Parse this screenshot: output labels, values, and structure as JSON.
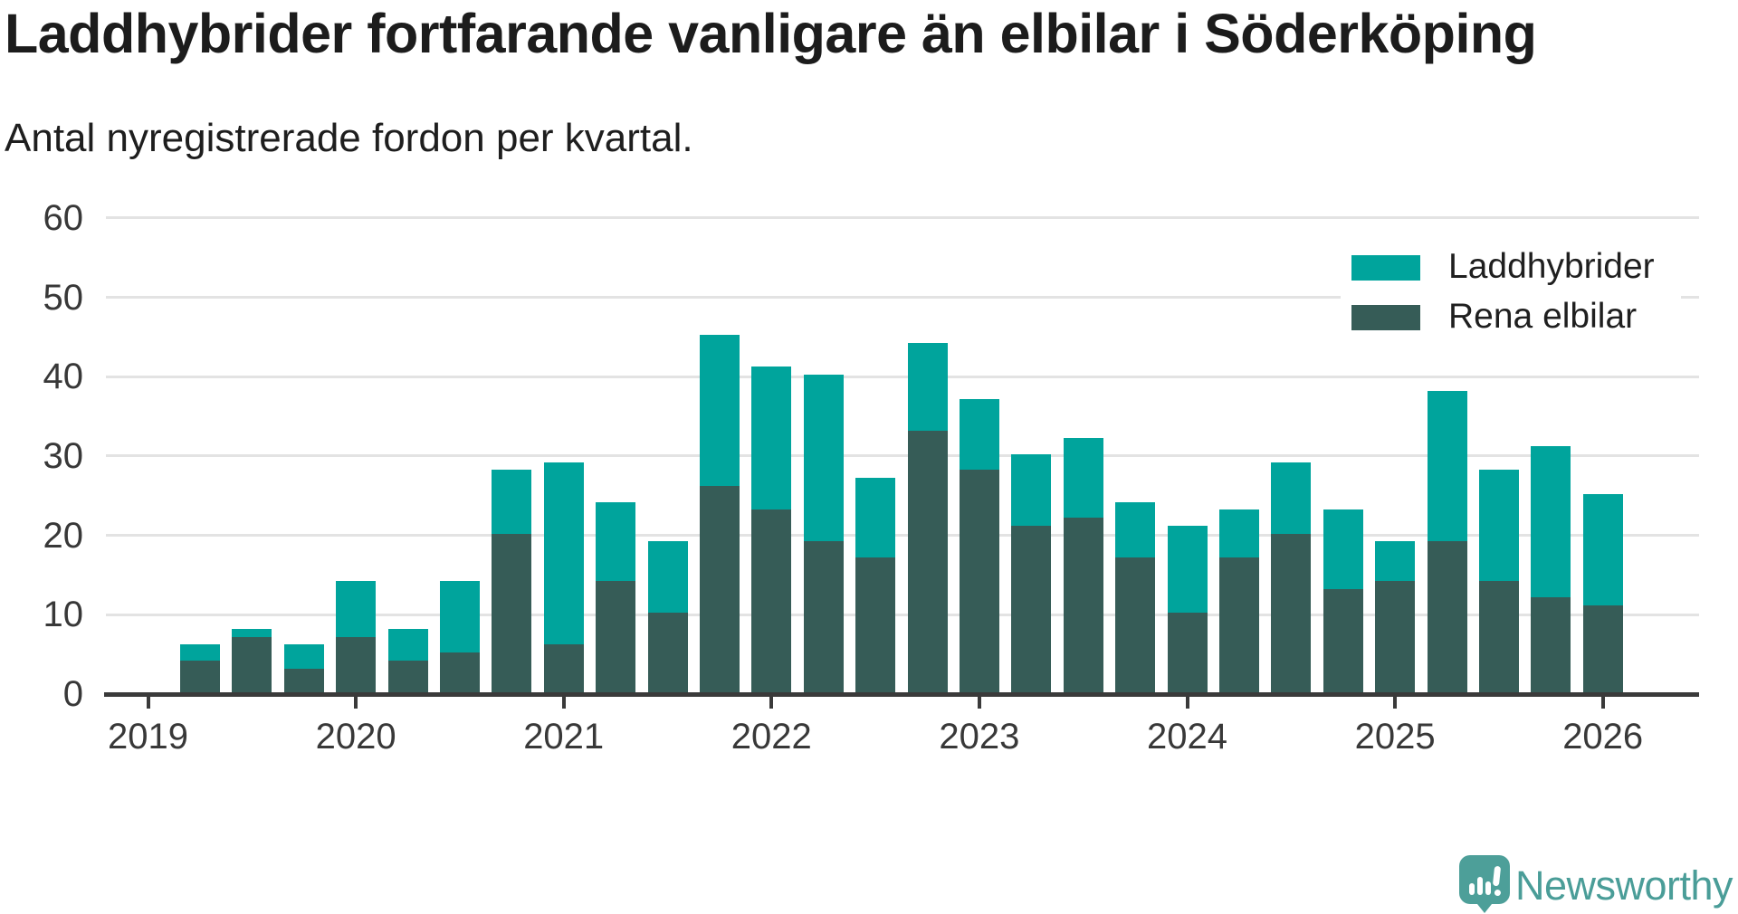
{
  "header": {
    "title": "Laddhybrider fortfarande vanligare än elbilar i Söderköping",
    "subtitle": "Antal nyregistrerade fordon per kvartal."
  },
  "chart_data": {
    "type": "bar",
    "stacked": true,
    "title": "Laddhybrider fortfarande vanligare än elbilar i Söderköping",
    "subtitle": "Antal nyregistrerade fordon per kvartal.",
    "categories": [
      "2019 Q2",
      "2019 Q3",
      "2019 Q4",
      "2020 Q1",
      "2020 Q2",
      "2020 Q3",
      "2020 Q4",
      "2021 Q1",
      "2021 Q2",
      "2021 Q3",
      "2021 Q4",
      "2022 Q1",
      "2022 Q2",
      "2022 Q3",
      "2022 Q4",
      "2023 Q1",
      "2023 Q2",
      "2023 Q3",
      "2023 Q4",
      "2024 Q1",
      "2024 Q2",
      "2024 Q3",
      "2024 Q4",
      "2025 Q1",
      "2025 Q2",
      "2025 Q3",
      "2025 Q4",
      "2026 Q1"
    ],
    "series": [
      {
        "name": "Laddhybrider",
        "color": "#00a49c",
        "values": [
          2,
          1,
          3,
          7,
          4,
          9,
          8,
          23,
          10,
          9,
          19,
          18,
          21,
          10,
          11,
          9,
          9,
          10,
          7,
          11,
          6,
          9,
          10,
          5,
          19,
          14,
          19,
          14
        ]
      },
      {
        "name": "Rena elbilar",
        "color": "#365c57",
        "values": [
          4,
          7,
          3,
          7,
          4,
          5,
          20,
          6,
          14,
          10,
          26,
          23,
          19,
          17,
          33,
          28,
          21,
          22,
          17,
          10,
          17,
          20,
          13,
          14,
          19,
          14,
          12,
          11
        ]
      }
    ],
    "stack_order_bottom_to_top": [
      "Rena elbilar",
      "Laddhybrider"
    ],
    "totals": [
      6,
      8,
      6,
      14,
      8,
      14,
      28,
      29,
      24,
      19,
      45,
      41,
      40,
      27,
      44,
      37,
      30,
      32,
      24,
      21,
      23,
      29,
      23,
      19,
      38,
      28,
      31,
      25
    ],
    "xlabel": "",
    "ylabel": "",
    "x_tick_labels": [
      "2019",
      "2020",
      "2021",
      "2022",
      "2023",
      "2024",
      "2025",
      "2026"
    ],
    "yticks": [
      0,
      10,
      20,
      30,
      40,
      50,
      60
    ],
    "ylim": [
      0,
      60
    ],
    "grid": true,
    "legend_position": "top-right"
  },
  "legend": {
    "items": [
      {
        "label": "Laddhybrider",
        "color": "#00a49c"
      },
      {
        "label": "Rena elbilar",
        "color": "#365c57"
      }
    ]
  },
  "footer": {
    "brand": "Newsworthy",
    "brand_color": "#4a9d98",
    "logo_icon": "newsworthy-speech-bubble-bar-chart-icon"
  }
}
